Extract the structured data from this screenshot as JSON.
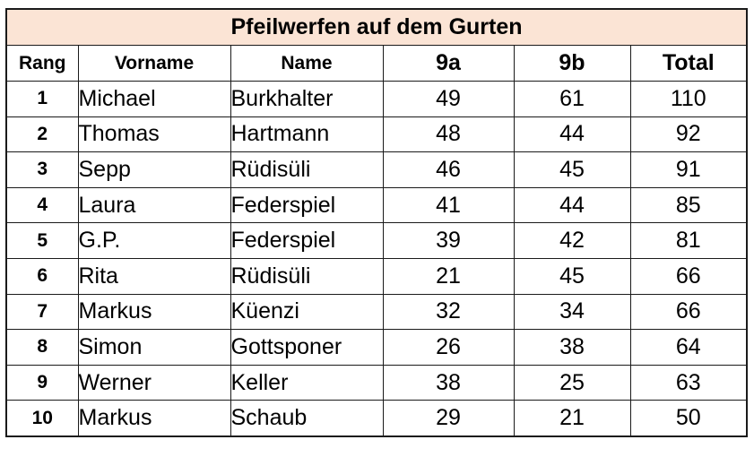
{
  "table": {
    "title": "Pfeilwerfen auf dem Gurten",
    "title_bg": "#fbe4d5",
    "headers": [
      "Rang",
      "Vorname",
      "Name",
      "9a",
      "9b",
      "Total"
    ],
    "rows": [
      [
        "1",
        "Michael",
        "Burkhalter",
        "49",
        "61",
        "110"
      ],
      [
        "2",
        "Thomas",
        "Hartmann",
        "48",
        "44",
        "92"
      ],
      [
        "3",
        "Sepp",
        "Rüdisüli",
        "46",
        "45",
        "91"
      ],
      [
        "4",
        "Laura",
        "Federspiel",
        "41",
        "44",
        "85"
      ],
      [
        "5",
        "G.P.",
        "Federspiel",
        "39",
        "42",
        "81"
      ],
      [
        "6",
        "Rita",
        "Rüdisüli",
        "21",
        "45",
        "66"
      ],
      [
        "7",
        "Markus",
        "Küenzi",
        "32",
        "34",
        "66"
      ],
      [
        "8",
        "Simon",
        "Gottsponer",
        "26",
        "38",
        "64"
      ],
      [
        "9",
        "Werner",
        "Keller",
        "38",
        "25",
        "63"
      ],
      [
        "10",
        "Markus",
        "Schaub",
        "29",
        "21",
        "50"
      ]
    ]
  }
}
